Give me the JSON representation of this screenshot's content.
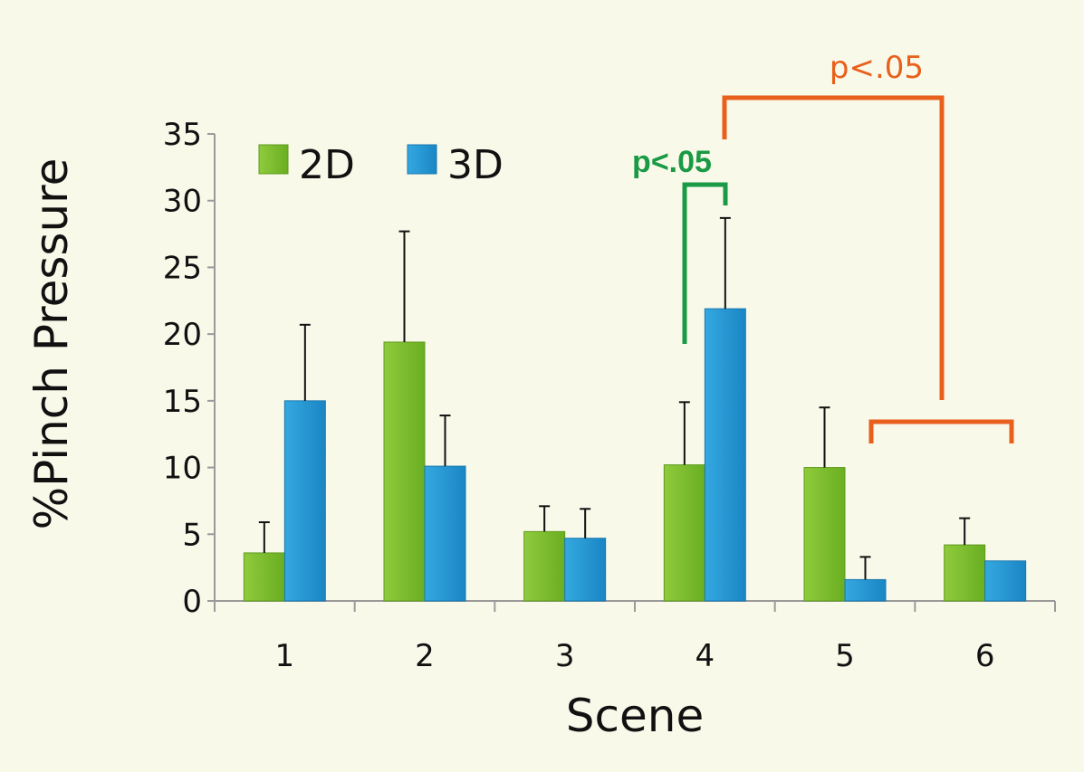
{
  "chart_data": {
    "type": "bar",
    "title": "",
    "xlabel": "Scene",
    "ylabel": "%Pinch Pressure",
    "categories": [
      "1",
      "2",
      "3",
      "4",
      "5",
      "6"
    ],
    "ylim": [
      0,
      35
    ],
    "yticks": [
      0,
      5,
      10,
      15,
      20,
      25,
      30,
      35
    ],
    "grid": false,
    "legend_position": "top-left",
    "series": [
      {
        "name": "2D",
        "color": "#7cbd2c",
        "values": [
          3.6,
          19.4,
          5.2,
          10.2,
          10.0,
          4.2
        ],
        "errors": [
          2.3,
          8.3,
          1.9,
          4.7,
          4.5,
          2.0
        ]
      },
      {
        "name": "3D",
        "color": "#1e96d4",
        "values": [
          15.0,
          10.1,
          4.7,
          21.9,
          1.6,
          3.0
        ],
        "errors": [
          5.7,
          3.8,
          2.2,
          6.8,
          1.7,
          0
        ]
      }
    ],
    "annotations": [
      {
        "label": "p<.05",
        "color": "#1a9a45",
        "compares": "Scene 4: 2D vs 3D"
      },
      {
        "label": "p<.05",
        "color": "#e8601c",
        "compares": "Scene 4 3D vs Scenes 5-6"
      }
    ]
  }
}
